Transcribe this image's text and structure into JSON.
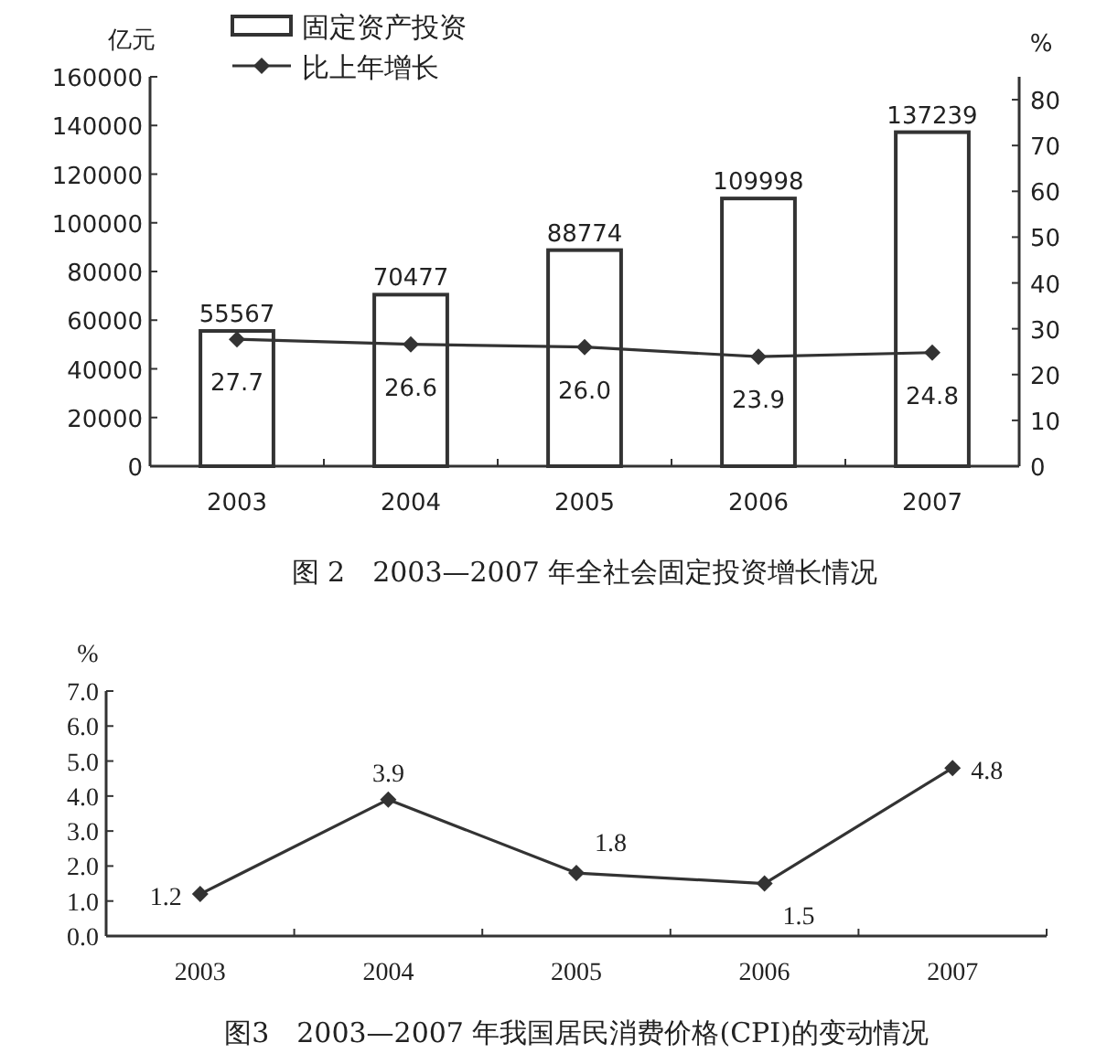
{
  "chart_data": [
    {
      "type": "bar",
      "title": "图 2　2003—2007 年全社会固定投资增长情况",
      "ylabel": "亿元",
      "y2label": "%",
      "categories": [
        "2003",
        "2004",
        "2005",
        "2006",
        "2007"
      ],
      "series": [
        {
          "name": "固定资产投资",
          "color": "#ffffff",
          "values": [
            55567,
            70477,
            88774,
            109998,
            137239
          ]
        },
        {
          "name": "比上年增长",
          "type": "line",
          "axis": "y2",
          "color": "#333333",
          "values": [
            27.7,
            26.6,
            26.0,
            23.9,
            24.8
          ],
          "value_labels": [
            "27.7",
            "26.6",
            "26.0",
            "23.9",
            "24.8"
          ]
        }
      ],
      "ylim": [
        0,
        160000
      ],
      "yticks": [
        0,
        20000,
        40000,
        60000,
        80000,
        100000,
        120000,
        140000,
        160000
      ],
      "y2lim": [
        0,
        85
      ],
      "y2ticks": [
        0,
        10,
        20,
        30,
        40,
        50,
        60,
        70,
        80
      ],
      "data_labels": true,
      "legend": "top left",
      "marker": "diamond",
      "grid": false
    },
    {
      "type": "line",
      "title": "图3　2003—2007 年我国居民消费价格(CPI)的变动情况",
      "ylabel": "%",
      "categories": [
        "2003",
        "2004",
        "2005",
        "2006",
        "2007"
      ],
      "series": [
        {
          "color": "#333333",
          "values": [
            1.2,
            3.9,
            1.8,
            1.5,
            4.8
          ]
        }
      ],
      "ylim": [
        0,
        7
      ],
      "yticks": [
        {
          "value": 0,
          "label": "0.0"
        },
        {
          "value": 1,
          "label": "1.0"
        },
        {
          "value": 2,
          "label": "2.0"
        },
        {
          "value": 3,
          "label": "3.0"
        },
        {
          "value": 4,
          "label": "4.0"
        },
        {
          "value": 5,
          "label": "5.0"
        },
        {
          "value": 6,
          "label": "6.0"
        },
        {
          "value": 7,
          "label": "7.0"
        }
      ],
      "data_labels": true,
      "marker": "diamond",
      "legend": false,
      "grid": false
    }
  ]
}
